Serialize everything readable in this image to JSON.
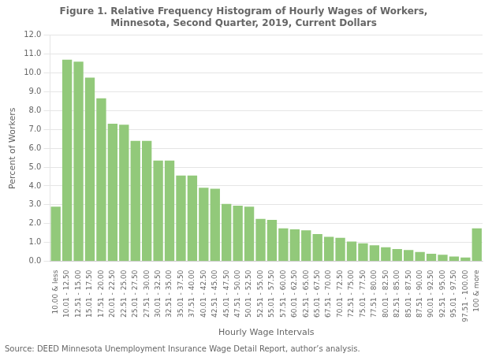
{
  "chart_data": {
    "type": "bar",
    "title": "Figure 1. Relative Frequency Histogram of Hourly Wages of Workers,\nMinnesota, Second Quarter, 2019, Current Dollars",
    "xlabel": "Hourly Wage Intervals",
    "ylabel": "Percent of Workers",
    "annotations": [
      "Source: DEED Minnesota Unemployment Insurance Wage Detail Report, author’s analysis."
    ],
    "categories": [
      "10.00 & less",
      "10.01 - 12.50",
      "12.51 - 15.00",
      "15.01 - 17.50",
      "17.51 - 20.00",
      "20.01 - 22.50",
      "22.51 - 25.00",
      "25.01 - 27.50",
      "27.51 - 30.00",
      "30.01 - 32.50",
      "32.51 - 35.00",
      "35.01 - 37.50",
      "37.51 - 40.00",
      "40.01 - 42.50",
      "42.51 - 45.00",
      "45.01 - 47.50",
      "47.51 - 50.00",
      "50.01 - 52.50",
      "52.51 - 55.00",
      "55.01 - 57.50",
      "57.51 - 60.00",
      "60.01 - 62.50",
      "62.51 - 65.00",
      "65.01 - 67.50",
      "67.51 - 70.00",
      "70.01 - 72.50",
      "72.51 - 75.00",
      "75.01 - 77.50",
      "77.51 - 80.00",
      "80.01 - 82.50",
      "82.51 - 85.00",
      "85.01 - 87.50",
      "87.51 - 90.00",
      "90.01 - 92.50",
      "92.51 - 95.00",
      "95.01 - 97.50",
      "97.51 - 100.00",
      "100 & more"
    ],
    "values": [
      2.9,
      10.7,
      10.6,
      9.75,
      8.65,
      7.3,
      7.25,
      6.4,
      6.4,
      5.35,
      5.35,
      4.55,
      4.55,
      3.9,
      3.85,
      3.05,
      2.95,
      2.9,
      2.25,
      2.2,
      1.75,
      1.7,
      1.65,
      1.45,
      1.3,
      1.25,
      1.05,
      0.95,
      0.85,
      0.75,
      0.65,
      0.6,
      0.5,
      0.4,
      0.35,
      0.25,
      0.2,
      1.75
    ],
    "color": "#92C97A",
    "ylim": [
      0,
      12.0
    ],
    "yticks": [
      {
        "value": 0,
        "label": "0.0"
      },
      {
        "value": 1,
        "label": "1.0"
      },
      {
        "value": 2,
        "label": "2.0"
      },
      {
        "value": 3,
        "label": "3.0"
      },
      {
        "value": 4,
        "label": "4.0"
      },
      {
        "value": 5,
        "label": "5.0"
      },
      {
        "value": 6,
        "label": "6.0"
      },
      {
        "value": 7,
        "label": "7.0"
      },
      {
        "value": 8,
        "label": "8.0"
      },
      {
        "value": 9,
        "label": "9.0"
      },
      {
        "value": 10,
        "label": "10.0"
      },
      {
        "value": 11,
        "label": "11.0"
      },
      {
        "value": 12,
        "label": "12.0"
      }
    ],
    "grid": true
  }
}
